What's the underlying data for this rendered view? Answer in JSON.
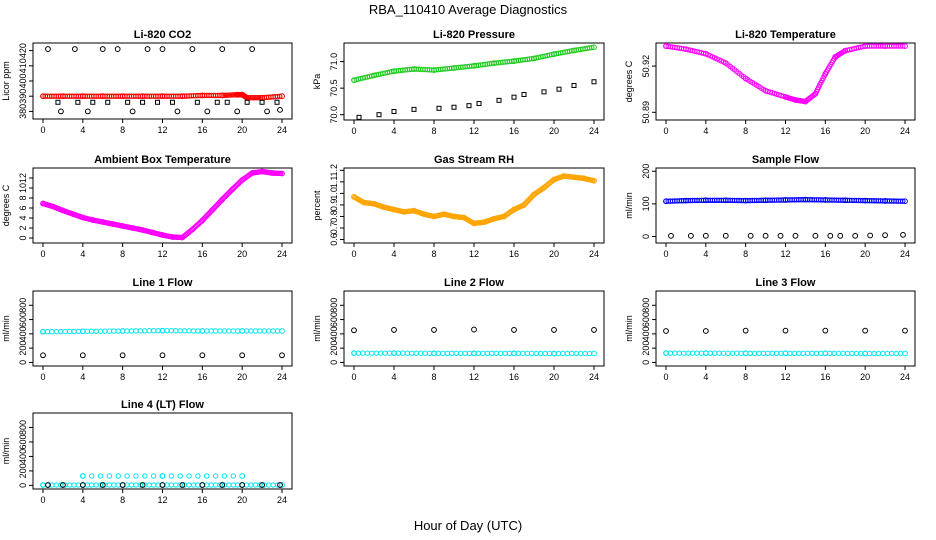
{
  "title": "RBA_110410  Average Diagnostics",
  "xlabel": "Hour of Day (UTC)",
  "colors": {
    "black": "#000000",
    "red": "#ff0000",
    "green": "#22cc22",
    "magenta": "#ff00ff",
    "orange": "#ffa500",
    "blue": "#0000ff",
    "cyan": "#00e5ee"
  },
  "chart_data": [
    {
      "type": "scatter",
      "title": "Li-820 CO2",
      "ylabel": "Licor ppm",
      "xlim": [
        0,
        24
      ],
      "ylim": [
        375,
        425
      ],
      "xticks": [
        "0",
        "4",
        "8",
        "12",
        "16",
        "20",
        "24"
      ],
      "yticks": [
        "380",
        "390",
        "400",
        "410",
        "420"
      ],
      "yticks_at": [
        380,
        390,
        400,
        410,
        420
      ],
      "series": [
        {
          "name": "CO2 (red)",
          "color": "red",
          "marker": "circle",
          "x": [
            0,
            2,
            4,
            6,
            8,
            10,
            12,
            14,
            16,
            18,
            19.5,
            20,
            20.5,
            22,
            24
          ],
          "y": [
            390,
            390,
            390,
            390,
            390,
            390,
            390,
            390,
            390.5,
            390.5,
            391,
            391,
            389,
            389,
            390
          ]
        },
        {
          "name": "CO2 open circles",
          "color": "black",
          "marker": "circle",
          "x": [
            0.5,
            1.8,
            3.2,
            4.5,
            6,
            7.5,
            9,
            10.5,
            12,
            13.5,
            15,
            16.5,
            18,
            19.5,
            21,
            22.5,
            23.8
          ],
          "y": [
            421,
            380,
            421,
            380,
            421,
            421,
            380,
            421,
            421,
            380,
            421,
            380,
            421,
            380,
            421,
            380,
            381
          ]
        },
        {
          "name": "CO2 squares",
          "color": "black",
          "marker": "square",
          "x": [
            1.5,
            3.5,
            5,
            6.5,
            8.5,
            10,
            11.5,
            13,
            15.5,
            17.5,
            18.5,
            20.5,
            22,
            23.5
          ],
          "y": [
            386,
            386,
            386,
            386,
            386,
            386,
            386,
            386,
            386,
            386,
            386,
            386,
            386,
            386
          ]
        }
      ]
    },
    {
      "type": "scatter",
      "title": "Li-820 Pressure",
      "ylabel": "kPa",
      "xlim": [
        0,
        24
      ],
      "ylim": [
        69.9,
        71.35
      ],
      "xticks": [
        "0",
        "4",
        "8",
        "12",
        "16",
        "20",
        "24"
      ],
      "yticks": [
        "70.0",
        "70.5",
        "71.0"
      ],
      "yticks_at": [
        70.0,
        70.5,
        71.0
      ],
      "series": [
        {
          "name": "Pressure",
          "color": "green",
          "marker": "circle",
          "x": [
            0,
            2,
            4,
            6,
            8,
            10,
            12,
            14,
            16,
            18,
            20,
            22,
            24
          ],
          "y": [
            70.65,
            70.74,
            70.82,
            70.86,
            70.84,
            70.88,
            70.92,
            70.97,
            71.01,
            71.06,
            71.14,
            71.21,
            71.27
          ]
        },
        {
          "name": "Pressure outliers",
          "color": "black",
          "marker": "square",
          "x": [
            0.5,
            2.5,
            4,
            6,
            8.5,
            10,
            11.5,
            12.5,
            14.5,
            16,
            17,
            19,
            20.5,
            22,
            24
          ],
          "y": [
            69.95,
            70.0,
            70.06,
            70.1,
            70.12,
            70.14,
            70.17,
            70.21,
            70.27,
            70.33,
            70.38,
            70.43,
            70.48,
            70.55,
            70.62
          ]
        }
      ]
    },
    {
      "type": "scatter",
      "title": "Li-820 Temperature",
      "ylabel": "degrees C",
      "xlim": [
        0,
        24
      ],
      "ylim": [
        50.885,
        50.935
      ],
      "xticks": [
        "0",
        "4",
        "8",
        "12",
        "16",
        "20",
        "24"
      ],
      "yticks": [
        "50.89",
        "50.92"
      ],
      "yticks_at": [
        50.89,
        50.92
      ],
      "series": [
        {
          "name": "Temperature",
          "color": "magenta",
          "marker": "circle",
          "x": [
            0,
            2,
            4,
            6,
            8,
            10,
            12,
            13,
            14,
            15,
            16,
            17,
            18,
            20,
            22,
            24
          ],
          "y": [
            50.933,
            50.931,
            50.928,
            50.922,
            50.912,
            50.904,
            50.9,
            50.898,
            50.897,
            50.902,
            50.915,
            50.926,
            50.93,
            50.933,
            50.933,
            50.933
          ]
        }
      ]
    },
    {
      "type": "scatter",
      "title": "Ambient Box Temperature",
      "ylabel": "degrees C",
      "xlim": [
        0,
        24
      ],
      "ylim": [
        -1,
        14
      ],
      "xticks": [
        "0",
        "4",
        "8",
        "12",
        "16",
        "20",
        "24"
      ],
      "yticks": [
        "0",
        "2",
        "4",
        "6",
        "8",
        "10",
        "12"
      ],
      "yticks_at": [
        0,
        2,
        4,
        6,
        8,
        10,
        12
      ],
      "series": [
        {
          "name": "Box temperature",
          "color": "magenta",
          "marker": "circle",
          "x": [
            0,
            1,
            2,
            3,
            4,
            5,
            6,
            7,
            8,
            9,
            10,
            11,
            12,
            13,
            14,
            15,
            16,
            17,
            18,
            19,
            20,
            21,
            22,
            23,
            24
          ],
          "y": [
            6.9,
            6.3,
            5.5,
            4.8,
            4.1,
            3.6,
            3.2,
            2.8,
            2.4,
            2.0,
            1.6,
            1.1,
            0.6,
            0.2,
            0.1,
            1.7,
            3.5,
            5.6,
            7.7,
            9.7,
            11.6,
            13.0,
            13.3,
            13.0,
            12.9
          ]
        }
      ]
    },
    {
      "type": "scatter",
      "title": "Gas Stream RH",
      "ylabel": "percent",
      "xlim": [
        0,
        24
      ],
      "ylim": [
        0.57,
        1.22
      ],
      "xticks": [
        "0",
        "4",
        "8",
        "12",
        "16",
        "20",
        "24"
      ],
      "yticks": [
        "0.6",
        "0.7",
        "0.8",
        "0.9",
        "1.0",
        "1.1",
        "1.2"
      ],
      "yticks_at": [
        0.6,
        0.7,
        0.8,
        0.9,
        1.0,
        1.1,
        1.2
      ],
      "series": [
        {
          "name": "RH",
          "color": "orange",
          "marker": "circle",
          "x": [
            0,
            1,
            2,
            3,
            4,
            5,
            6,
            7,
            8,
            9,
            10,
            11,
            12,
            13,
            14,
            15,
            16,
            17,
            18,
            19,
            20,
            21,
            22,
            23,
            24
          ],
          "y": [
            0.97,
            0.92,
            0.91,
            0.88,
            0.86,
            0.84,
            0.85,
            0.82,
            0.8,
            0.82,
            0.8,
            0.79,
            0.74,
            0.75,
            0.78,
            0.8,
            0.86,
            0.9,
            0.99,
            1.05,
            1.12,
            1.15,
            1.14,
            1.13,
            1.11
          ]
        }
      ]
    },
    {
      "type": "scatter",
      "title": "Sample Flow",
      "ylabel": "ml/min",
      "xlim": [
        0,
        24
      ],
      "ylim": [
        -20,
        210
      ],
      "xticks": [
        "0",
        "4",
        "8",
        "12",
        "16",
        "20",
        "24"
      ],
      "yticks": [
        "0",
        "100",
        "200"
      ],
      "yticks_at": [
        0,
        100,
        200
      ],
      "series": [
        {
          "name": "Sample flow",
          "color": "blue",
          "marker": "circle",
          "x": [
            0,
            2,
            4,
            6,
            8,
            10,
            12,
            14,
            16,
            18,
            20,
            22,
            24
          ],
          "y": [
            108,
            110,
            111,
            111,
            110,
            111,
            112,
            113,
            112,
            111,
            110,
            109,
            108
          ]
        },
        {
          "name": "Sample flow low",
          "color": "black",
          "marker": "circle",
          "x": [
            0.5,
            2.5,
            4,
            6,
            8.5,
            10,
            11.5,
            13,
            15,
            16.5,
            17.5,
            19,
            20.5,
            22,
            23.8
          ],
          "y": [
            2,
            2,
            2,
            2,
            2,
            2,
            2,
            2,
            2,
            2,
            2,
            2,
            3,
            4,
            5
          ]
        }
      ]
    },
    {
      "type": "scatter",
      "title": "Line 1 Flow",
      "ylabel": "ml/min",
      "xlim": [
        0,
        24
      ],
      "ylim": [
        -50,
        1000
      ],
      "xticks": [
        "0",
        "4",
        "8",
        "12",
        "16",
        "20",
        "24"
      ],
      "yticks": [
        "0",
        "200",
        "400",
        "600",
        "800"
      ],
      "yticks_at": [
        0,
        200,
        400,
        600,
        800
      ],
      "series": [
        {
          "name": "Line 1 high",
          "color": "cyan",
          "marker": "circle",
          "x": [
            0,
            4,
            8,
            12,
            16,
            20,
            24
          ],
          "y": [
            430,
            435,
            440,
            445,
            440,
            440,
            440
          ]
        },
        {
          "name": "Line 1 low",
          "color": "black",
          "marker": "circle",
          "x": [
            0,
            4,
            8,
            12,
            16,
            20,
            24
          ],
          "y": [
            100,
            100,
            100,
            100,
            100,
            100,
            100
          ]
        }
      ]
    },
    {
      "type": "scatter",
      "title": "Line 2 Flow",
      "ylabel": "ml/min",
      "xlim": [
        0,
        24
      ],
      "ylim": [
        -50,
        1000
      ],
      "xticks": [
        "0",
        "4",
        "8",
        "12",
        "16",
        "20",
        "24"
      ],
      "yticks": [
        "0",
        "200",
        "400",
        "600",
        "800"
      ],
      "yticks_at": [
        0,
        200,
        400,
        600,
        800
      ],
      "series": [
        {
          "name": "Line 2 high",
          "color": "black",
          "marker": "circle",
          "x": [
            0,
            4,
            8,
            12,
            16,
            20,
            24
          ],
          "y": [
            450,
            455,
            455,
            460,
            455,
            455,
            455
          ]
        },
        {
          "name": "Line 2 low",
          "color": "cyan",
          "marker": "circle",
          "x": [
            0,
            4,
            8,
            12,
            16,
            20,
            24
          ],
          "y": [
            130,
            130,
            128,
            128,
            128,
            125,
            125
          ]
        }
      ]
    },
    {
      "type": "scatter",
      "title": "Line 3 Flow",
      "ylabel": "ml/min",
      "xlim": [
        0,
        24
      ],
      "ylim": [
        -50,
        1000
      ],
      "xticks": [
        "0",
        "4",
        "8",
        "12",
        "16",
        "20",
        "24"
      ],
      "yticks": [
        "0",
        "200",
        "400",
        "600",
        "800"
      ],
      "yticks_at": [
        0,
        200,
        400,
        600,
        800
      ],
      "series": [
        {
          "name": "Line 3 high",
          "color": "black",
          "marker": "circle",
          "x": [
            0,
            4,
            8,
            12,
            16,
            20,
            24
          ],
          "y": [
            440,
            440,
            445,
            445,
            445,
            445,
            445
          ]
        },
        {
          "name": "Line 3 low",
          "color": "cyan",
          "marker": "circle",
          "x": [
            0,
            4,
            8,
            12,
            16,
            20,
            24
          ],
          "y": [
            130,
            130,
            128,
            128,
            128,
            125,
            125
          ]
        }
      ]
    },
    {
      "type": "scatter",
      "title": "Line 4 (LT) Flow",
      "ylabel": "ml/min",
      "xlim": [
        0,
        24
      ],
      "ylim": [
        -50,
        1000
      ],
      "xticks": [
        "0",
        "4",
        "8",
        "12",
        "16",
        "20",
        "24"
      ],
      "yticks": [
        "0",
        "200",
        "400",
        "600",
        "800"
      ],
      "yticks_at": [
        0,
        200,
        400,
        600,
        800
      ],
      "series": [
        {
          "name": "Line 4 flow",
          "color": "cyan",
          "marker": "circle",
          "x": [
            0,
            4,
            8,
            12,
            16,
            20,
            24
          ],
          "y": [
            5,
            5,
            5,
            5,
            5,
            5,
            5
          ]
        },
        {
          "name": "Line 4 spikes",
          "color": "cyan",
          "marker": "circle",
          "x": [
            4,
            12,
            20
          ],
          "y": [
            130,
            130,
            130
          ]
        },
        {
          "name": "Line 4 black",
          "color": "black",
          "marker": "circle",
          "x": [
            0.5,
            2,
            4,
            6,
            8,
            10,
            12,
            14,
            16,
            18,
            20,
            22,
            23.8
          ],
          "y": [
            5,
            5,
            5,
            5,
            5,
            5,
            5,
            5,
            5,
            5,
            5,
            5,
            5
          ]
        }
      ]
    }
  ]
}
